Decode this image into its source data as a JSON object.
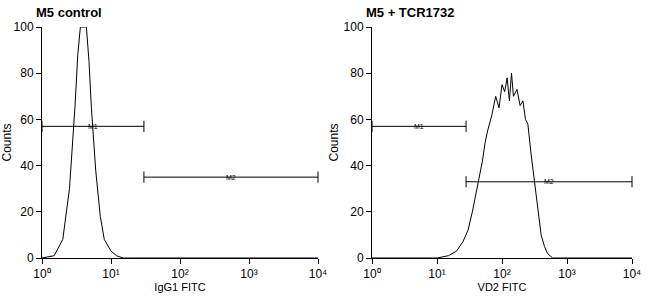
{
  "chart_data": [
    {
      "type": "line",
      "title": "M5 control",
      "x_label": "IgG1 FITC",
      "y_label": "Counts",
      "x": [
        1,
        1.5,
        2,
        2.5,
        3,
        3.3,
        3.6,
        4,
        4.4,
        4.8,
        5.2,
        6,
        7,
        8,
        10,
        12,
        15,
        20,
        10000
      ],
      "values": [
        0,
        1,
        8,
        30,
        65,
        88,
        100,
        100,
        100,
        85,
        65,
        38,
        18,
        8,
        3,
        1,
        0,
        0,
        0
      ],
      "color": "#000000",
      "log": "x",
      "grid": false,
      "xlim": [
        1,
        10000
      ],
      "xticks": [
        {
          "value": 1,
          "label": "10⁰"
        },
        {
          "value": 10,
          "label": "10¹"
        },
        {
          "value": 100,
          "label": "10²"
        },
        {
          "value": 1000,
          "label": "10³"
        },
        {
          "value": 10000,
          "label": "10⁴"
        }
      ],
      "ylim": [
        0,
        100
      ],
      "yticks": [
        0,
        20,
        40,
        60,
        80,
        100
      ],
      "annotations": [
        {
          "text": "M1",
          "x": [
            1,
            30
          ],
          "y": 57
        },
        {
          "text": "M2",
          "x": [
            30,
            10000
          ],
          "y": 35
        }
      ]
    },
    {
      "type": "line",
      "title": "M5 + TCR1732",
      "x_label": "VD2 FITC",
      "y_label": "Counts",
      "x": [
        1,
        10,
        15,
        20,
        25,
        30,
        35,
        40,
        45,
        50,
        55,
        60,
        70,
        80,
        90,
        100,
        110,
        120,
        130,
        140,
        150,
        170,
        190,
        210,
        230,
        250,
        280,
        320,
        360,
        400,
        450,
        500,
        600,
        10000
      ],
      "values": [
        0,
        0,
        1,
        3,
        7,
        12,
        20,
        28,
        35,
        42,
        50,
        55,
        62,
        70,
        65,
        75,
        72,
        78,
        68,
        80,
        70,
        73,
        66,
        68,
        60,
        58,
        45,
        32,
        18,
        10,
        5,
        2,
        0,
        0
      ],
      "color": "#000000",
      "log": "x",
      "grid": false,
      "xlim": [
        1,
        10000
      ],
      "xticks": [
        {
          "value": 1,
          "label": "10⁰"
        },
        {
          "value": 10,
          "label": "10¹"
        },
        {
          "value": 100,
          "label": "10²"
        },
        {
          "value": 1000,
          "label": "10³"
        },
        {
          "value": 10000,
          "label": "10⁴"
        }
      ],
      "ylim": [
        0,
        100
      ],
      "yticks": [
        0,
        20,
        40,
        60,
        80,
        100
      ],
      "annotations": [
        {
          "text": "M1",
          "x": [
            1,
            28
          ],
          "y": 57
        },
        {
          "text": "M2",
          "x": [
            28,
            10000
          ],
          "y": 33
        }
      ]
    }
  ]
}
